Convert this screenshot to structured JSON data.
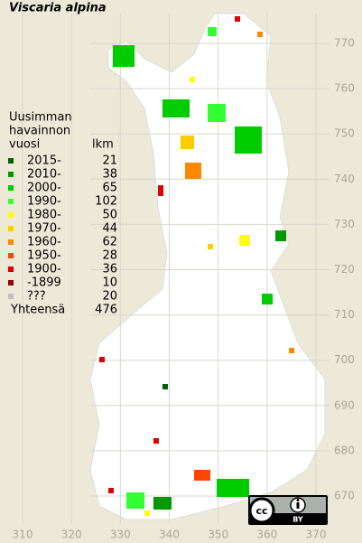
{
  "title": "Viscaria alpina",
  "legend": {
    "heading": [
      "Uusimman",
      "havainnon",
      "vuosi"
    ],
    "count_heading": "lkm",
    "items": [
      {
        "label": "2015-",
        "count": "21",
        "color": "#006400"
      },
      {
        "label": "2010-",
        "count": "38",
        "color": "#009900"
      },
      {
        "label": "2000-",
        "count": "65",
        "color": "#00cc00"
      },
      {
        "label": "1990-",
        "count": "102",
        "color": "#33ff33"
      },
      {
        "label": "1980-",
        "count": "50",
        "color": "#ffff00"
      },
      {
        "label": "1970-",
        "count": "44",
        "color": "#ffcc00"
      },
      {
        "label": "1960-",
        "count": "62",
        "color": "#ff8800"
      },
      {
        "label": "1950-",
        "count": "28",
        "color": "#ff4400"
      },
      {
        "label": "1900-",
        "count": "36",
        "color": "#dd0000"
      },
      {
        "label": "-1899",
        "count": "10",
        "color": "#990000"
      },
      {
        "label": "???",
        "count": "20",
        "color": "#c0c0c0"
      }
    ],
    "total_label": "Yhteensä",
    "total_count": "476"
  },
  "x_labels": [
    310,
    320,
    330,
    340,
    350,
    360,
    370
  ],
  "y_labels": [
    770,
    760,
    750,
    740,
    730,
    720,
    710,
    700,
    690,
    680,
    670
  ],
  "license": "BY"
}
